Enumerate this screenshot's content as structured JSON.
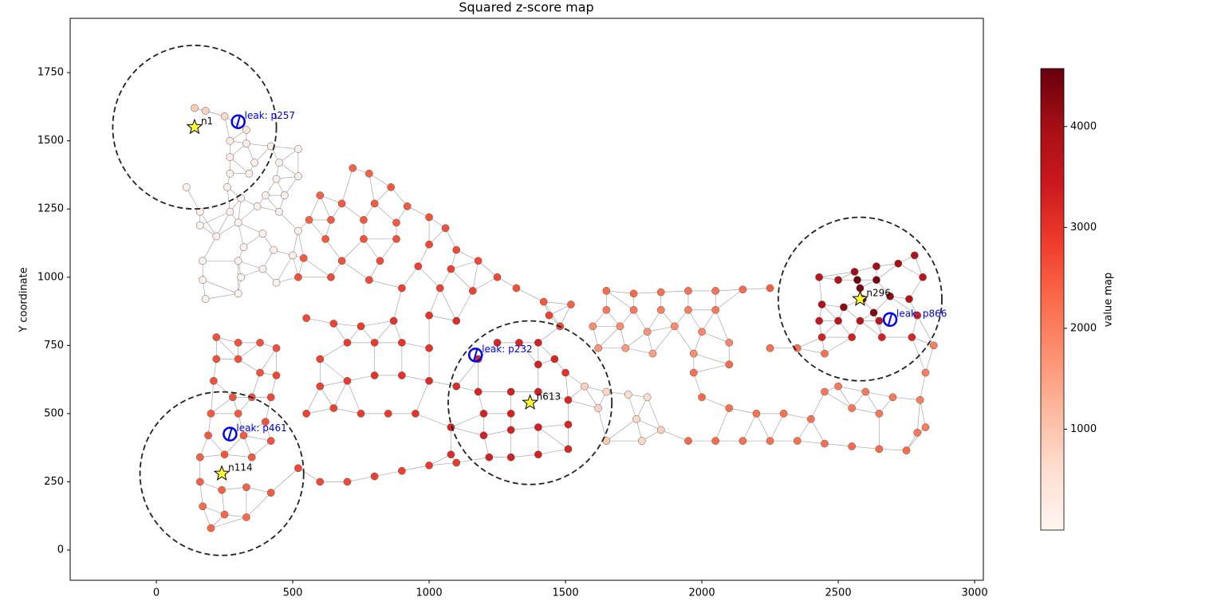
{
  "chart_data": {
    "type": "network",
    "title": "Squared z-score map",
    "ylabel": "Y coordinate",
    "colorbar_label": "value map",
    "xlim": [
      -316,
      3032
    ],
    "ylim": [
      -111,
      1949
    ],
    "xticks": [
      0,
      500,
      1000,
      1500,
      2000,
      2500,
      3000
    ],
    "yticks": [
      0,
      250,
      500,
      750,
      1000,
      1250,
      1500,
      1750
    ],
    "clim": [
      0,
      4575
    ],
    "cticks": [
      1000,
      2000,
      3000,
      4000
    ],
    "colormap": "Reds",
    "nodes": {
      "x": [
        140,
        180,
        250,
        330,
        270,
        330,
        420,
        520,
        270,
        360,
        450,
        270,
        340,
        440,
        520,
        110,
        260,
        310,
        400,
        470,
        160,
        270,
        370,
        450,
        160,
        300,
        390,
        520,
        220,
        320,
        430,
        170,
        300,
        390,
        500,
        170,
        310,
        440,
        180,
        300,
        720,
        780,
        860,
        600,
        680,
        800,
        920,
        1000,
        1060,
        560,
        640,
        760,
        880,
        620,
        760,
        880,
        1000,
        1100,
        1180,
        1250,
        1320,
        1420,
        1520,
        540,
        680,
        820,
        960,
        1080,
        520,
        640,
        780,
        900,
        1040,
        1160,
        220,
        300,
        380,
        440,
        220,
        300,
        380,
        440,
        210,
        280,
        350,
        420,
        200,
        300,
        400,
        190,
        320,
        420,
        160,
        250,
        350,
        160,
        240,
        330,
        420,
        170,
        250,
        330,
        200,
        520,
        600,
        700,
        800,
        900,
        1000,
        1100,
        550,
        650,
        750,
        850,
        950,
        600,
        700,
        800,
        900,
        1000,
        550,
        650,
        750,
        870,
        1000,
        1100,
        600,
        700,
        800,
        900,
        1000,
        1100,
        1180,
        1250,
        1330,
        1400,
        1460,
        1500,
        1400,
        1180,
        1200,
        1200,
        1220,
        1300,
        1400,
        1510,
        1510,
        1510,
        1300,
        1400,
        1300,
        1300,
        1400,
        1080,
        1080,
        1440,
        1480,
        1650,
        1750,
        1850,
        1950,
        2050,
        2150,
        2250,
        1650,
        1750,
        1850,
        1950,
        2050,
        1600,
        1700,
        1800,
        1900,
        2000,
        1620,
        1720,
        1820,
        1970,
        2100,
        1570,
        1650,
        1730,
        1800,
        1620,
        1760,
        1850,
        1650,
        1780,
        1950,
        2050,
        2150,
        2250,
        2350,
        2450,
        2550,
        2650,
        2750,
        2000,
        2100,
        2200,
        2300,
        2400,
        1970,
        2100,
        2250,
        2350,
        2450,
        2500,
        2600,
        2700,
        2800,
        2820,
        2850,
        2550,
        2650,
        2450,
        2820,
        2790,
        2430,
        2500,
        2560,
        2640,
        2720,
        2780,
        2810,
        2440,
        2520,
        2580,
        2630,
        2690,
        2760,
        2430,
        2500,
        2580,
        2650,
        2790,
        2440,
        2550,
        2660,
        2770,
        2570,
        2640,
        2590
      ],
      "y": [
        1620,
        1610,
        1590,
        1540,
        1500,
        1490,
        1480,
        1470,
        1440,
        1420,
        1420,
        1380,
        1380,
        1360,
        1370,
        1330,
        1330,
        1290,
        1300,
        1300,
        1240,
        1240,
        1260,
        1240,
        1190,
        1200,
        1160,
        1170,
        1150,
        1110,
        1100,
        1060,
        1060,
        1030,
        1080,
        990,
        1000,
        980,
        920,
        940,
        1400,
        1380,
        1330,
        1300,
        1270,
        1270,
        1260,
        1220,
        1180,
        1210,
        1210,
        1210,
        1200,
        1140,
        1140,
        1140,
        1120,
        1100,
        1060,
        1000,
        960,
        910,
        900,
        1070,
        1060,
        1060,
        1040,
        1030,
        1000,
        1000,
        990,
        960,
        960,
        950,
        780,
        760,
        760,
        740,
        700,
        700,
        650,
        640,
        620,
        560,
        560,
        560,
        500,
        500,
        470,
        420,
        420,
        400,
        340,
        350,
        340,
        250,
        220,
        230,
        210,
        160,
        130,
        120,
        80,
        300,
        250,
        250,
        270,
        290,
        310,
        320,
        500,
        520,
        500,
        500,
        500,
        700,
        760,
        760,
        760,
        740,
        850,
        830,
        820,
        840,
        860,
        840,
        600,
        620,
        640,
        640,
        620,
        600,
        700,
        760,
        760,
        760,
        700,
        650,
        680,
        580,
        500,
        420,
        340,
        340,
        350,
        370,
        460,
        550,
        580,
        580,
        500,
        440,
        450,
        450,
        350,
        860,
        820,
        950,
        940,
        945,
        950,
        950,
        955,
        960,
        880,
        880,
        880,
        880,
        880,
        820,
        820,
        800,
        820,
        800,
        740,
        740,
        720,
        720,
        760,
        600,
        580,
        570,
        560,
        520,
        480,
        440,
        400,
        400,
        400,
        400,
        400,
        400,
        400,
        390,
        380,
        370,
        365,
        560,
        520,
        500,
        500,
        480,
        650,
        680,
        740,
        740,
        720,
        600,
        580,
        560,
        550,
        650,
        750,
        520,
        500,
        580,
        450,
        430,
        1000,
        990,
        1020,
        1040,
        1050,
        1080,
        1000,
        900,
        890,
        960,
        870,
        930,
        920,
        840,
        840,
        840,
        840,
        860,
        780,
        780,
        780,
        780,
        990,
        990,
        920
      ],
      "values": [
        900,
        800,
        700,
        500,
        300,
        250,
        200,
        150,
        200,
        180,
        150,
        150,
        160,
        150,
        170,
        120,
        140,
        150,
        170,
        200,
        120,
        140,
        160,
        180,
        120,
        140,
        180,
        200,
        130,
        150,
        170,
        120,
        140,
        160,
        200,
        120,
        140,
        160,
        120,
        140,
        2400,
        2400,
        2500,
        2400,
        2500,
        2500,
        2500,
        2600,
        2600,
        2400,
        2500,
        2500,
        2500,
        2500,
        2600,
        2600,
        2700,
        2700,
        2700,
        2700,
        2600,
        2500,
        2400,
        2500,
        2600,
        2700,
        2800,
        2800,
        2600,
        2700,
        2700,
        2800,
        2800,
        2800,
        2600,
        2600,
        2600,
        2600,
        2600,
        2600,
        2600,
        2700,
        2600,
        2600,
        2600,
        2700,
        2500,
        2500,
        2600,
        2500,
        2500,
        2600,
        2400,
        2500,
        2500,
        2400,
        2400,
        2400,
        2500,
        2300,
        2300,
        2300,
        2300,
        2700,
        2700,
        2700,
        2800,
        2800,
        2900,
        2900,
        2800,
        2800,
        2900,
        2900,
        3000,
        2800,
        2900,
        2900,
        3000,
        3000,
        2700,
        2800,
        2900,
        3000,
        3000,
        3100,
        2800,
        2900,
        3000,
        3000,
        3100,
        3100,
        3200,
        3200,
        3200,
        3300,
        3200,
        3000,
        3300,
        3200,
        3300,
        3300,
        3300,
        3300,
        3300,
        3200,
        3200,
        3200,
        3300,
        3300,
        3300,
        3300,
        3300,
        3200,
        3100,
        2800,
        2700,
        2300,
        2300,
        2200,
        2200,
        2200,
        2300,
        2400,
        2100,
        2100,
        2000,
        2000,
        2100,
        1800,
        1800,
        1700,
        1800,
        1900,
        1700,
        1600,
        1500,
        1800,
        1900,
        800,
        700,
        600,
        600,
        800,
        700,
        800,
        900,
        700,
        2300,
        2300,
        2200,
        2200,
        2200,
        2200,
        2300,
        2300,
        2300,
        2300,
        2200,
        2200,
        2200,
        2200,
        2200,
        2300,
        2200,
        2200,
        2200,
        2100,
        2100,
        2100,
        2000,
        2000,
        2000,
        2100,
        2100,
        2100,
        2000,
        2100,
        3600,
        3800,
        4000,
        4000,
        3900,
        3800,
        3700,
        3800,
        4200,
        4400,
        4300,
        4200,
        3800,
        3500,
        3600,
        3700,
        3600,
        3300,
        3300,
        3300,
        3300,
        3200,
        4500,
        4400,
        4300
      ]
    },
    "sensors": [
      {
        "label": "n1",
        "x": 140,
        "y": 1550,
        "radius": 300
      },
      {
        "label": "n114",
        "x": 240,
        "y": 280,
        "radius": 300
      },
      {
        "label": "n613",
        "x": 1370,
        "y": 540,
        "radius": 300
      },
      {
        "label": "n296",
        "x": 2580,
        "y": 920,
        "radius": 300
      }
    ],
    "leaks": [
      {
        "label": "leak: p257",
        "x": 300,
        "y": 1570
      },
      {
        "label": "leak: p461",
        "x": 270,
        "y": 425
      },
      {
        "label": "leak: p232",
        "x": 1170,
        "y": 715
      },
      {
        "label": "leak: p866",
        "x": 2690,
        "y": 845
      }
    ]
  }
}
